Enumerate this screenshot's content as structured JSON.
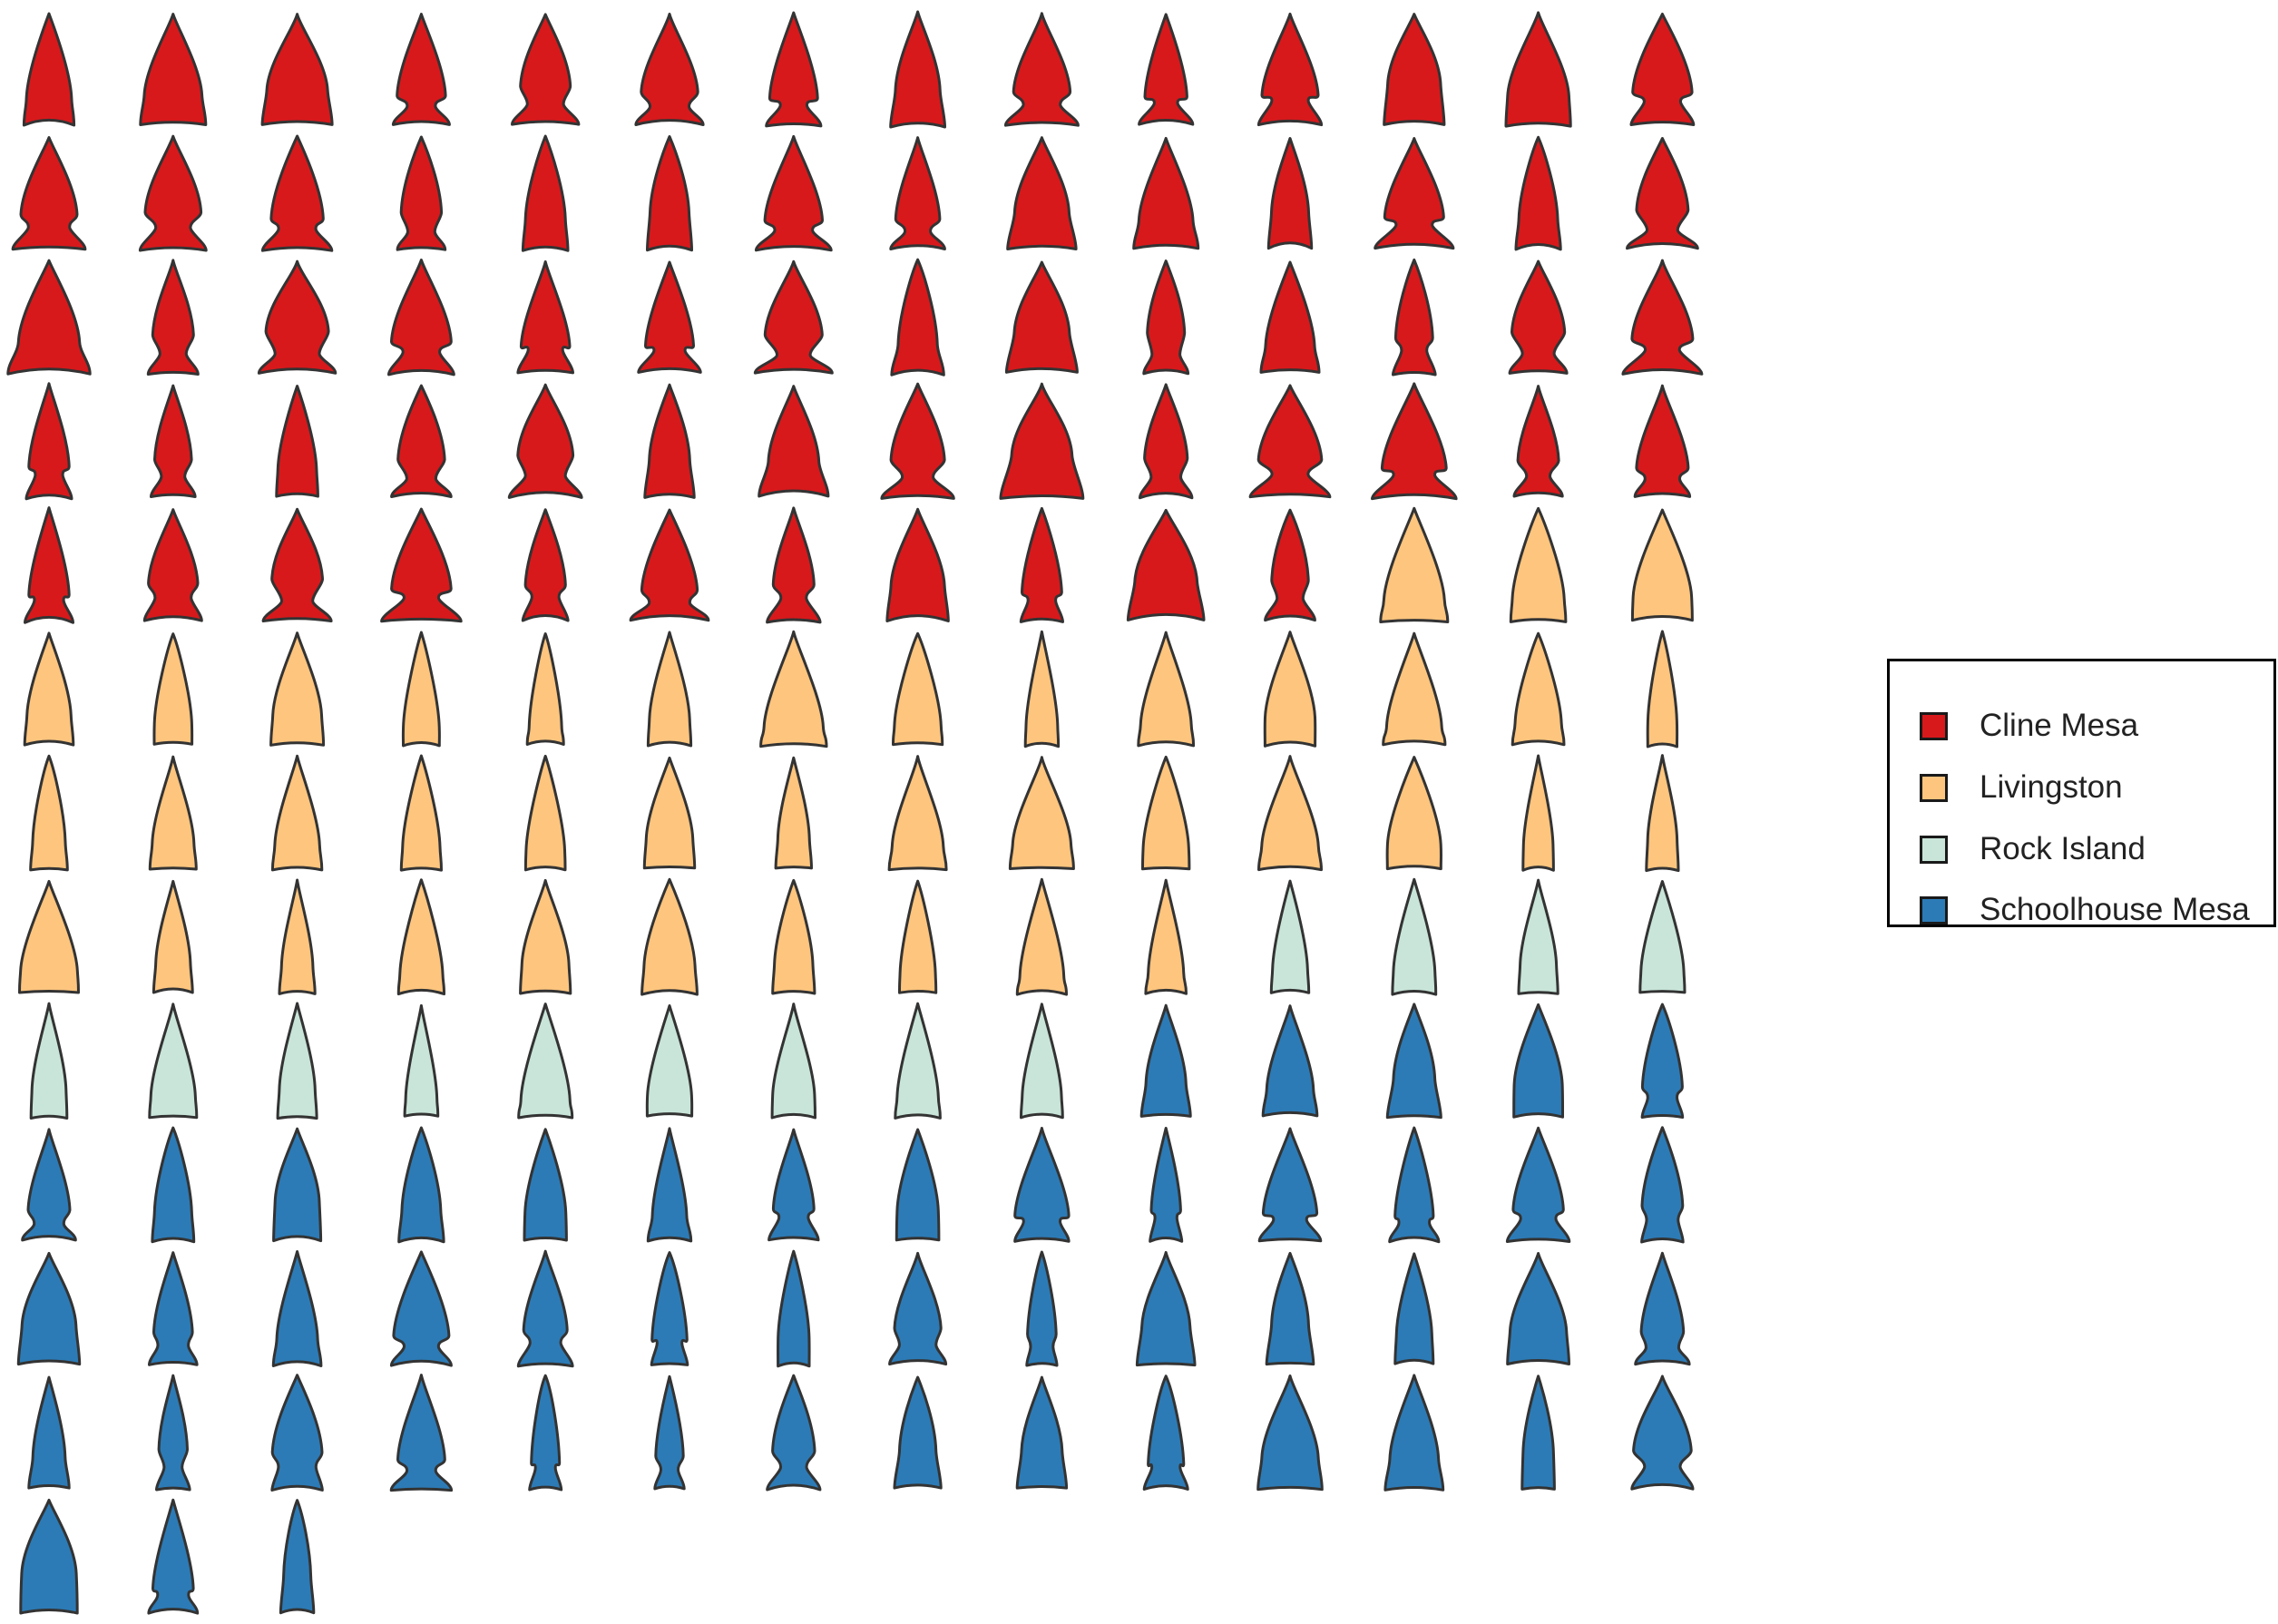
{
  "chart_data": {
    "type": "glyph-grid",
    "title": "",
    "columns": 14,
    "legend": {
      "placement": "right",
      "entries": [
        {
          "name": "Cline Mesa",
          "color": "#D7191C",
          "count": 67
        },
        {
          "name": "Livingston",
          "color": "#FDC57E",
          "count": 41
        },
        {
          "name": "Rock Island",
          "color": "#C9E5D9",
          "count": 13
        },
        {
          "name": "Schoolhouse Mesa",
          "color": "#2C7BB6",
          "count": 50
        }
      ]
    }
  }
}
